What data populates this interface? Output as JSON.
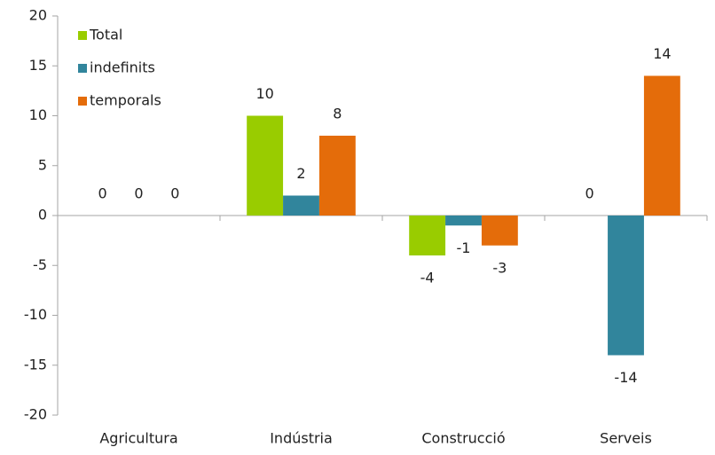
{
  "chart_data": {
    "type": "bar",
    "categories": [
      "Agricultura",
      "Indústria",
      "Construcció",
      "Serveis"
    ],
    "series": [
      {
        "name": "Total",
        "color": "#99cc00",
        "values": [
          0,
          10,
          -4,
          0
        ]
      },
      {
        "name": "indefinits",
        "color": "#31859c",
        "values": [
          0,
          2,
          -1,
          -14
        ]
      },
      {
        "name": "temporals",
        "color": "#e46c0a",
        "values": [
          0,
          8,
          -3,
          14
        ]
      }
    ],
    "ylim": [
      -20,
      20
    ],
    "yticks": [
      -20,
      -15,
      -10,
      -5,
      0,
      5,
      10,
      15,
      20
    ],
    "grid": false,
    "legend": "top-left"
  }
}
